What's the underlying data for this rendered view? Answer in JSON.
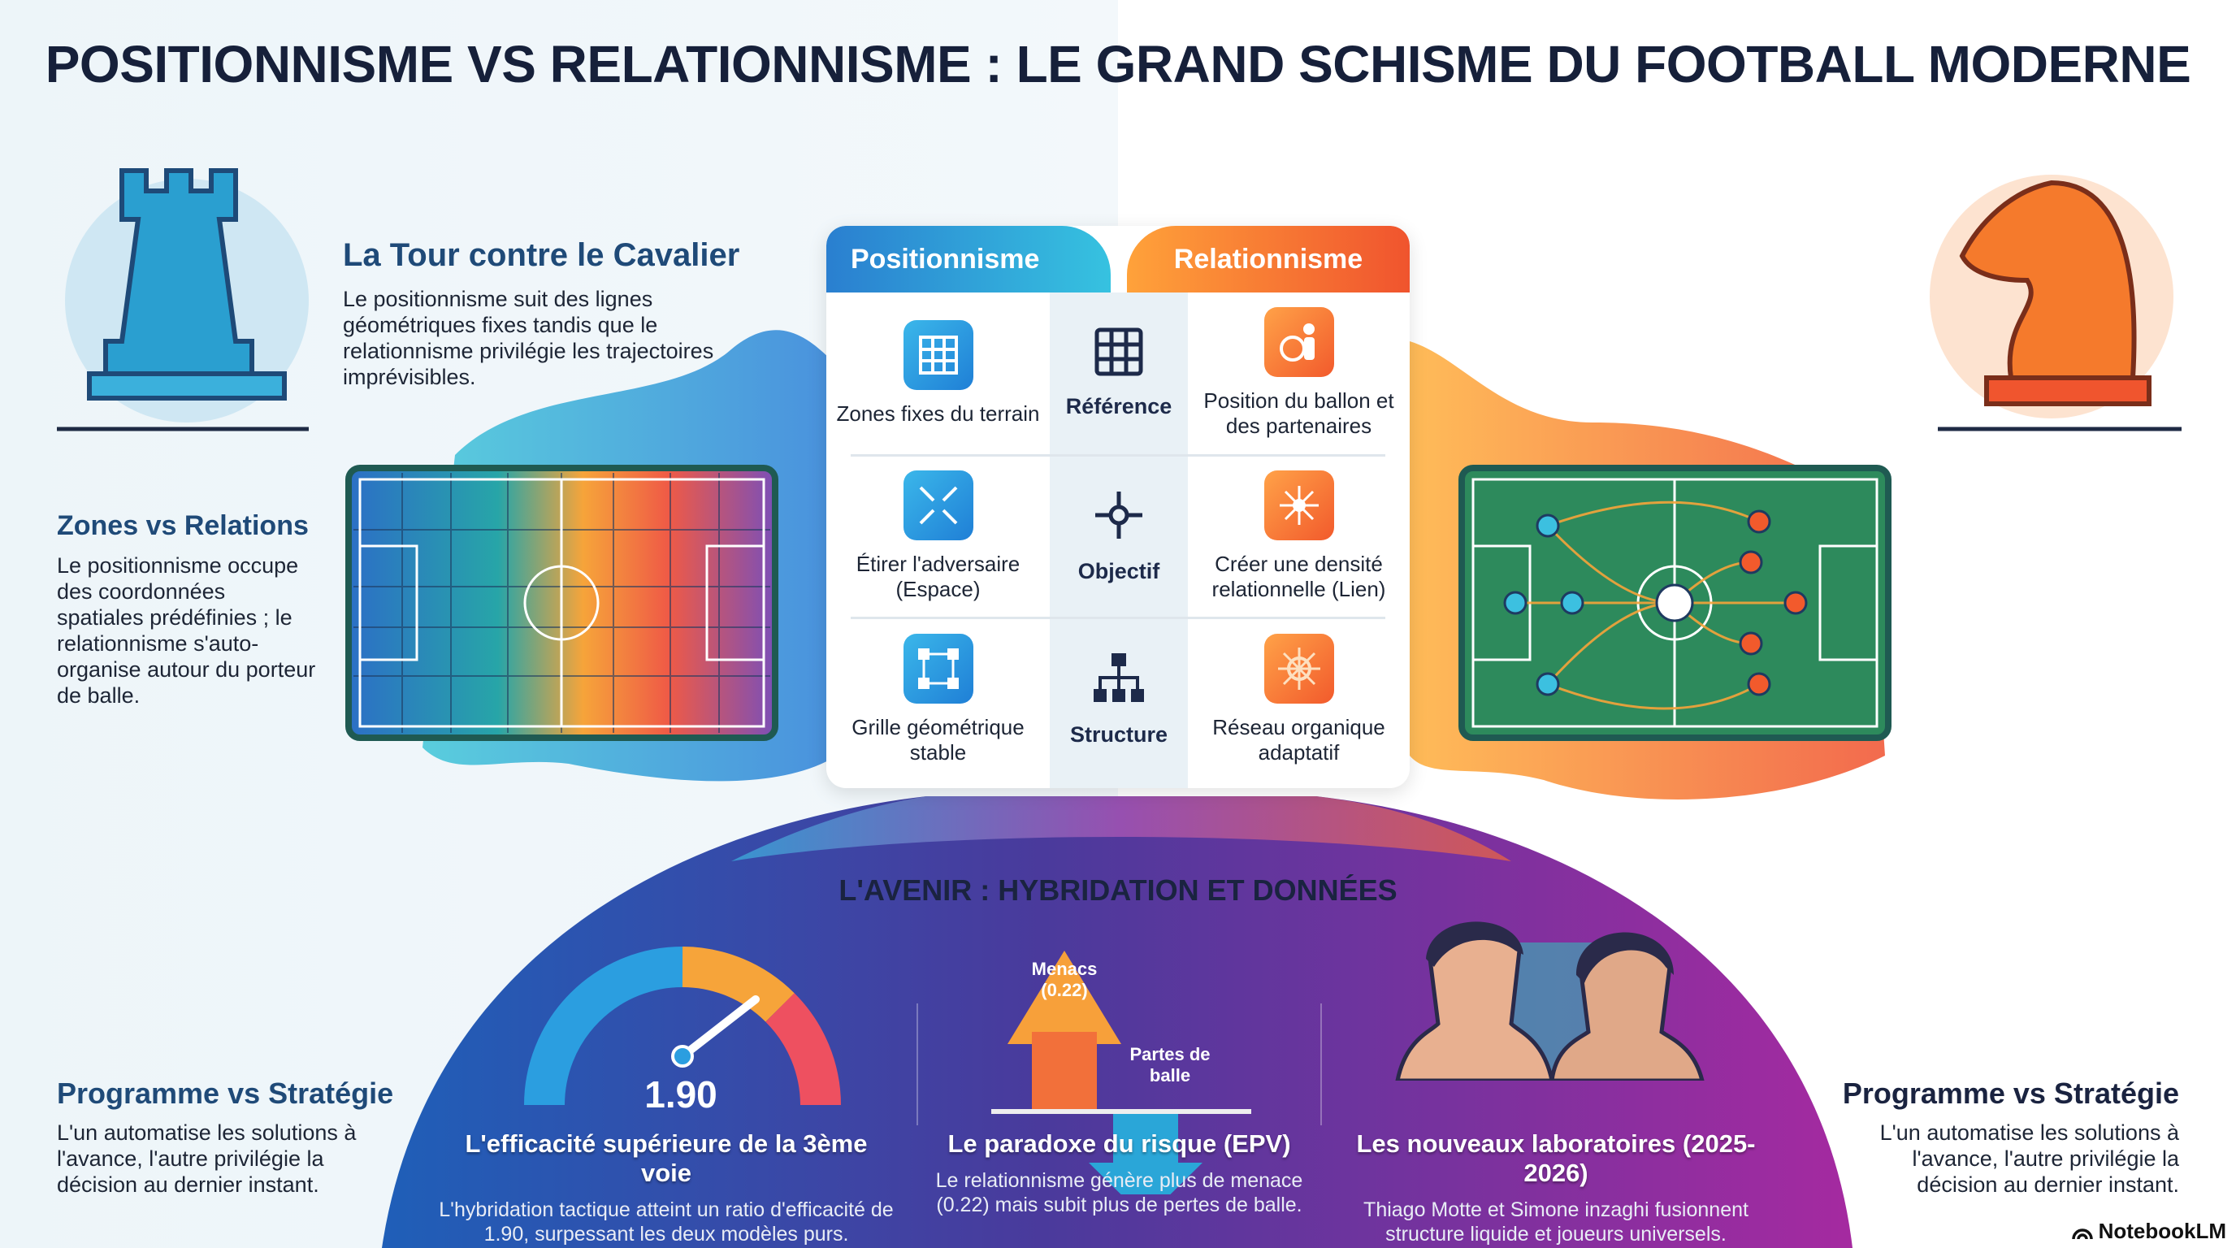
{
  "title": "POSITIONNISME VS RELATIONNISME : LE GRAND SCHISME DU FOOTBALL MODERNE",
  "intro": {
    "heading": "La Tour contre le Cavalier",
    "body": "Le positionnisme suit des lignes géométriques fixes tandis que le relationnisme privilégie les trajectoires imprévisibles."
  },
  "zones": {
    "heading": "Zones vs Relations",
    "body": "Le positionnisme occupe des coordonnées spatiales prédéfinies ; le relationnisme s'auto-organise autour du porteur de balle."
  },
  "programme_left": {
    "heading": "Programme vs Stratégie",
    "body": "L'un automatise les solutions à l'avance, l'autre privilégie la décision au dernier instant."
  },
  "programme_right": {
    "heading": "Programme vs Stratégie",
    "body": "L'un automatise les solutions à l'avance, l'autre privilégie la décision au dernier instant."
  },
  "comparison": {
    "left_header": "Positionnisme",
    "right_header": "Relationnisme",
    "rows": [
      {
        "left": "Zones fixes du terrain",
        "left_icon": "grid-icon",
        "center": "Référence",
        "center_icon": "grid-icon",
        "right": "Position du ballon et des partenaires",
        "right_icon": "ball-player-icon"
      },
      {
        "left": "Étirer l'adversaire (Espace)",
        "left_icon": "expand-arrows-icon",
        "center": "Objectif",
        "center_icon": "move-target-icon",
        "right": "Créer une densité relationnelle (Lien)",
        "right_icon": "network-hub-icon"
      },
      {
        "left": "Grille géométrique stable",
        "left_icon": "square-nodes-icon",
        "center": "Structure",
        "center_icon": "hierarchy-icon",
        "right": "Réseau organique adaptatif",
        "right_icon": "organic-network-icon"
      }
    ]
  },
  "future": {
    "heading": "L'AVENIR : HYBRIDATION ET DONNÉES",
    "gauge_value": "1.90",
    "arrow_up_label": "Menacs (0.22)",
    "arrow_down_label": "Partes de balle",
    "cards": [
      {
        "title": "L'efficacité supérieure de la 3ème voie",
        "body": "L'hybridation tactique atteint un ratio d'efficacité de 1.90, surpessant les deux modèles purs."
      },
      {
        "title": "Le paradoxe du risque (EPV)",
        "body": "Le relationnisme génère plus de menace (0.22) mais subit plus de pertes de balle."
      },
      {
        "title": "Les nouveaux laboratoires (2025-2026)",
        "body": "Thiago Motte et Simone inzaghi fusionnent structure liquide et joueurs universels."
      }
    ]
  },
  "branding": "NotebookLM",
  "colors": {
    "positional": "#1f7fd6",
    "relational": "#f25a2c",
    "title": "#16203a",
    "heading": "#1f4a78"
  }
}
